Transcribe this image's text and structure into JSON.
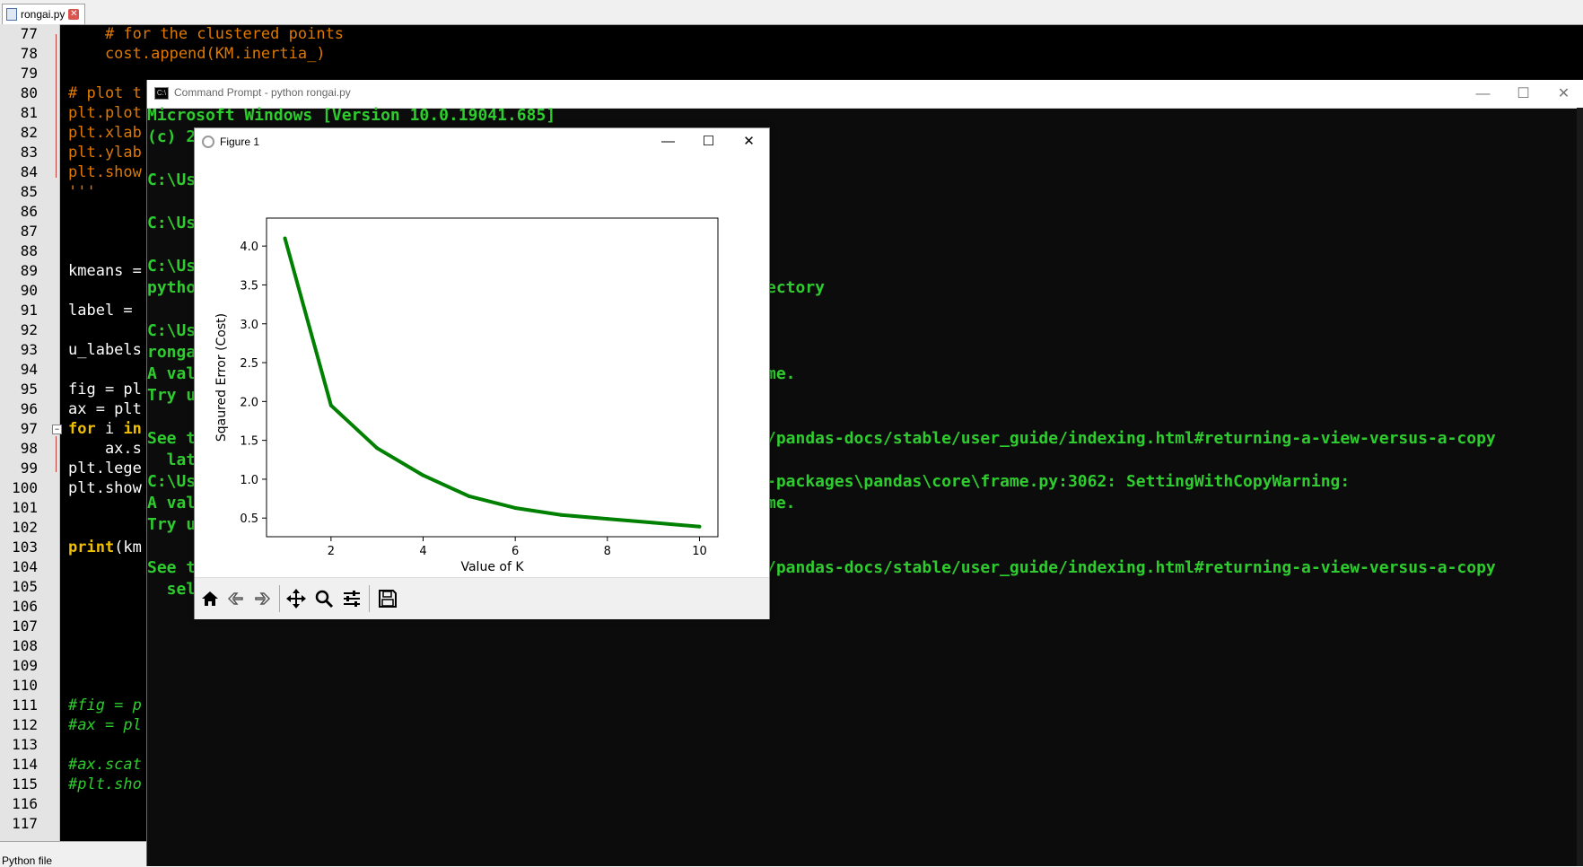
{
  "editor": {
    "tab_label": "rongai.py",
    "status_text": "Python file",
    "line_numbers": [
      "77",
      "78",
      "79",
      "80",
      "81",
      "82",
      "83",
      "84",
      "85",
      "86",
      "87",
      "88",
      "89",
      "90",
      "91",
      "92",
      "93",
      "94",
      "95",
      "96",
      "97",
      "98",
      "99",
      "100",
      "101",
      "102",
      "103",
      "104",
      "105",
      "106",
      "107",
      "108",
      "109",
      "110",
      "111",
      "112",
      "113",
      "114",
      "115",
      "116",
      "117"
    ],
    "code": {
      "l77": "    # for the clustered points",
      "l78": "    cost.append(KM.inertia_)",
      "l80": "# plot t",
      "l81": "plt.plot",
      "l82": "plt.xlab",
      "l83": "plt.ylab",
      "l84": "plt.show",
      "l85": "'''",
      "l89": "kmeans =",
      "l91": "label = ",
      "l93": "u_labels",
      "l95_a": "fig = pl",
      "l96": "ax = plt",
      "l97_kw1": "for",
      "l97_mid": " i ",
      "l97_kw2": "in",
      "l98": "    ax.s",
      "l99": "plt.lege",
      "l100": "plt.show",
      "l103_kw": "print",
      "l103_rest": "(km",
      "l111": "#fig = p",
      "l112": "#ax = pl",
      "l114": "#ax.scat",
      "l115": "#plt.sho"
    }
  },
  "cmd": {
    "title": "Command Prompt - python  rongai.py",
    "lines": {
      "r1": "Microsoft Windows [Version 10.0.19041.685]",
      "r2": "(c) 2",
      "r3": "C:\\Us",
      "r4": "C:\\Us",
      "r5": "C:\\Us",
      "r6_a": "pytho",
      "r6_b": "ectory",
      "r7": "C:\\Us",
      "r8": "ronga",
      "r9_a": "A val",
      "r9_b": "me.",
      "r10": "Try u",
      "r11_a": "See t",
      "r11_b": "/pandas-docs/stable/user_guide/indexing.html#returning-a-view-versus-a-copy",
      "r12": "  lat",
      "r13_a": "C:\\Us",
      "r13_b": "-packages\\pandas\\core\\frame.py:3062: SettingWithCopyWarning:",
      "r14_a": "A val",
      "r14_b": "me.",
      "r15": "Try u",
      "r16_a": "See t",
      "r16_b": "/pandas-docs/stable/user_guide/indexing.html#returning-a-view-versus-a-copy",
      "r17": "  sel"
    }
  },
  "figure": {
    "title": "Figure 1",
    "toolbar_icons": [
      "home-icon",
      "back-arrow-icon",
      "forward-arrow-icon",
      "pan-icon",
      "zoom-icon",
      "configure-subplots-icon",
      "save-icon"
    ]
  },
  "chart_data": {
    "type": "line",
    "title": "",
    "xlabel": "Value of K",
    "ylabel": "Sqaured Error (Cost)",
    "x": [
      1,
      2,
      3,
      4,
      5,
      6,
      7,
      8,
      9,
      10
    ],
    "series": [
      {
        "values": [
          4.1,
          1.95,
          1.4,
          1.05,
          0.78,
          0.63,
          0.54,
          0.49,
          0.44,
          0.39
        ]
      }
    ],
    "xlim": [
      0.6,
      10.4
    ],
    "ylim": [
      0.26,
      4.36
    ],
    "xticks": [
      "2",
      "4",
      "6",
      "8",
      "10"
    ],
    "yticks": [
      "0.5",
      "1.0",
      "1.5",
      "2.0",
      "2.5",
      "3.0",
      "3.5",
      "4.0"
    ],
    "line_color": "#008000",
    "grid": false
  }
}
